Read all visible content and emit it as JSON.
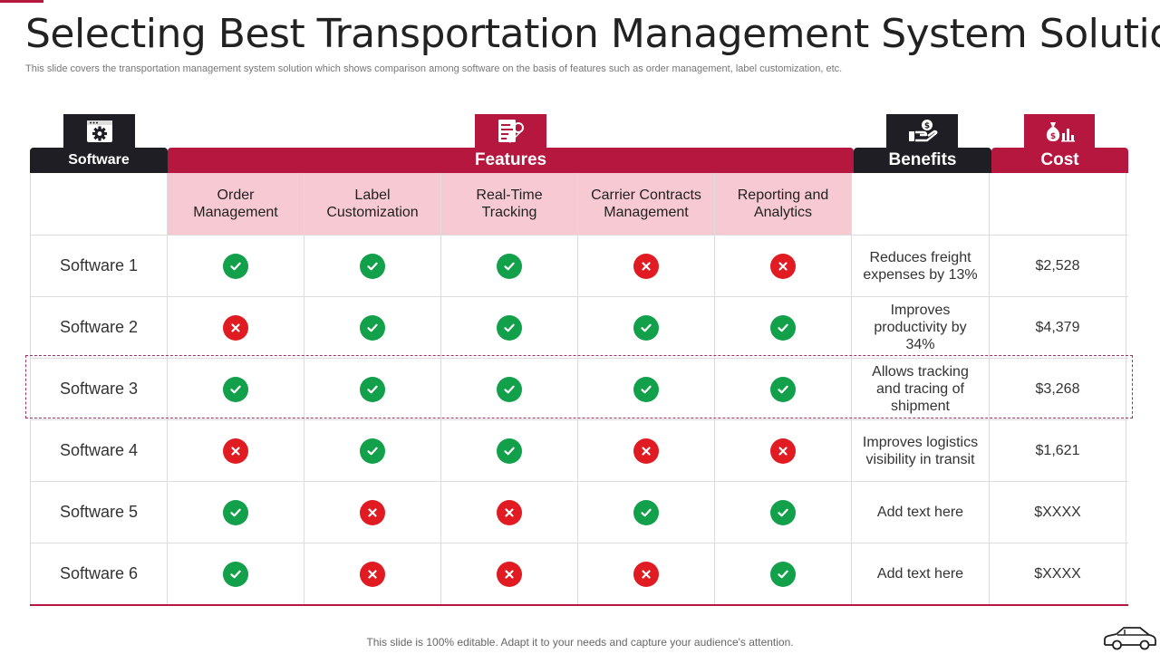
{
  "title": "Selecting Best Transportation Management System Solution",
  "subtitle": "This slide covers the transportation management system solution which shows comparison among software on the basis of features such as order management, label customization, etc.",
  "headers": {
    "software": "Software",
    "features": "Features",
    "benefits": "Benefits",
    "cost": "Cost"
  },
  "icons": {
    "software": "gear-window-icon",
    "features": "document-edit-icon",
    "benefits": "hand-money-icon",
    "cost": "money-bag-chart-icon",
    "check": "check-icon",
    "cross": "cross-icon",
    "footer": "car-icon"
  },
  "feature_columns": [
    "Order Management",
    "Label Customization",
    "Real-Time Tracking",
    "Carrier Contracts Management",
    "Reporting and Analytics"
  ],
  "rows": [
    {
      "name": "Software 1",
      "features": [
        true,
        true,
        true,
        false,
        false
      ],
      "benefit": "Reduces freight expenses by 13%",
      "cost": "$2,528"
    },
    {
      "name": "Software 2",
      "features": [
        false,
        true,
        true,
        true,
        true
      ],
      "benefit": "Improves productivity by 34%",
      "cost": "$4,379"
    },
    {
      "name": "Software 3",
      "features": [
        true,
        true,
        true,
        true,
        true
      ],
      "benefit": "Allows tracking and tracing of shipment",
      "cost": "$3,268"
    },
    {
      "name": "Software 4",
      "features": [
        false,
        true,
        true,
        false,
        false
      ],
      "benefit": "Improves logistics visibility in transit",
      "cost": "$1,621"
    },
    {
      "name": "Software 5",
      "features": [
        true,
        false,
        false,
        true,
        true
      ],
      "benefit": "Add text here",
      "cost": "$XXXX"
    },
    {
      "name": "Software 6",
      "features": [
        true,
        false,
        false,
        false,
        true
      ],
      "benefit": "Add text here",
      "cost": "$XXXX"
    }
  ],
  "highlighted_row": "Software 3",
  "footer": "This slide is 100% editable. Adapt it to your needs and capture your audience's attention.",
  "colors": {
    "crimson": "#b5173f",
    "dark": "#1e1e24",
    "feature_header_bg": "#f7c9d3",
    "check": "#12a04a",
    "cross": "#e11b22"
  }
}
